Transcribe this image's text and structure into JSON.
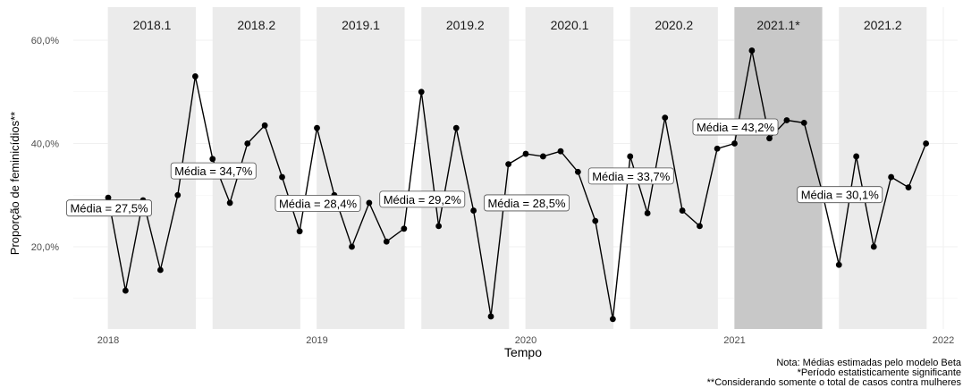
{
  "chart_data": {
    "type": "line",
    "title": "",
    "xlabel": "Tempo",
    "ylabel": "Proporção de feminicídios**",
    "ylim": [
      3,
      66
    ],
    "xlim": [
      2017.88,
      2022.02
    ],
    "x_ticks": [
      {
        "value": 2018,
        "label": "2018"
      },
      {
        "value": 2019,
        "label": "2019"
      },
      {
        "value": 2020,
        "label": "2020"
      },
      {
        "value": 2021,
        "label": "2021"
      },
      {
        "value": 2022,
        "label": "2022"
      }
    ],
    "y_ticks": [
      {
        "value": 20,
        "label": "20,0%"
      },
      {
        "value": 40,
        "label": "40,0%"
      },
      {
        "value": 60,
        "label": "60,0%"
      }
    ],
    "grid": true,
    "periods": [
      {
        "label": "2018.1",
        "start": 2018.0,
        "end": 2018.417,
        "mean": 27.5,
        "mean_label": "Média = 27,5%",
        "highlight": false
      },
      {
        "label": "2018.2",
        "start": 2018.5,
        "end": 2018.917,
        "mean": 34.7,
        "mean_label": "Média = 34,7%",
        "highlight": false
      },
      {
        "label": "2019.1",
        "start": 2019.0,
        "end": 2019.417,
        "mean": 28.4,
        "mean_label": "Média = 28,4%",
        "highlight": false
      },
      {
        "label": "2019.2",
        "start": 2019.5,
        "end": 2019.917,
        "mean": 29.2,
        "mean_label": "Média = 29,2%",
        "highlight": false
      },
      {
        "label": "2020.1",
        "start": 2020.0,
        "end": 2020.417,
        "mean": 28.5,
        "mean_label": "Média = 28,5%",
        "highlight": false
      },
      {
        "label": "2020.2",
        "start": 2020.5,
        "end": 2020.917,
        "mean": 33.7,
        "mean_label": "Média = 33,7%",
        "highlight": false
      },
      {
        "label": "2021.1*",
        "start": 2021.0,
        "end": 2021.417,
        "mean": 43.2,
        "mean_label": "Média = 43,2%",
        "highlight": true
      },
      {
        "label": "2021.2",
        "start": 2021.5,
        "end": 2021.917,
        "mean": 30.1,
        "mean_label": "Média = 30,1%",
        "highlight": false
      }
    ],
    "series": [
      {
        "x": [
          2018.0,
          2018.083,
          2018.167,
          2018.25,
          2018.333,
          2018.417,
          2018.5,
          2018.583,
          2018.667,
          2018.75,
          2018.833,
          2018.917,
          2019.0,
          2019.083,
          2019.167,
          2019.25,
          2019.333,
          2019.417,
          2019.5,
          2019.583,
          2019.667,
          2019.75,
          2019.833,
          2019.917,
          2020.0,
          2020.083,
          2020.167,
          2020.25,
          2020.333,
          2020.417,
          2020.5,
          2020.583,
          2020.667,
          2020.75,
          2020.833,
          2020.917,
          2021.0,
          2021.083,
          2021.167,
          2021.25,
          2021.333,
          2021.417,
          2021.5,
          2021.583,
          2021.667,
          2021.75,
          2021.833,
          2021.917
        ],
        "y": [
          29.5,
          11.5,
          29.0,
          15.5,
          30.0,
          53.0,
          37.0,
          28.5,
          40.0,
          43.5,
          33.5,
          23.0,
          43.0,
          30.0,
          20.0,
          28.5,
          21.0,
          23.5,
          50.0,
          24.0,
          43.0,
          27.0,
          6.5,
          36.0,
          38.0,
          37.5,
          38.5,
          34.5,
          25.0,
          6.0,
          37.5,
          26.5,
          45.0,
          27.0,
          24.0,
          39.0,
          40.0,
          58.0,
          41.0,
          44.5,
          44.0,
          31.0,
          16.5,
          37.5,
          20.0,
          33.5,
          31.5,
          40.0
        ]
      }
    ],
    "notes": [
      "Nota: Médias estimadas pelo modelo Beta",
      "*Período estatisticamente significante",
      "**Considerando somente o total de casos contra mulheres"
    ],
    "colors": {
      "band": "#ebebeb",
      "band_highlight": "#c8c8c8",
      "grid": "#f0f0f0",
      "line": "#000000",
      "label_border": "#4d4d4d"
    }
  }
}
